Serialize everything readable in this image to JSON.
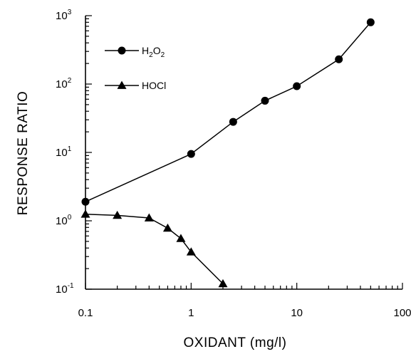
{
  "chart_data": {
    "type": "line",
    "xlabel": "OXIDANT (mg/l)",
    "ylabel": "RESPONSE RATIO",
    "x_scale": "log",
    "y_scale": "log",
    "xlim": [
      0.1,
      100
    ],
    "ylim": [
      0.1,
      1000
    ],
    "x_ticks": [
      {
        "value": 0.1,
        "label": "0.1"
      },
      {
        "value": 1,
        "label": "1"
      },
      {
        "value": 10,
        "label": "10"
      },
      {
        "value": 100,
        "label": "100"
      }
    ],
    "y_ticks": [
      {
        "value": 0.1,
        "base": "10",
        "exp": "-1"
      },
      {
        "value": 1,
        "base": "10",
        "exp": "0"
      },
      {
        "value": 10,
        "base": "10",
        "exp": "1"
      },
      {
        "value": 100,
        "base": "10",
        "exp": "2"
      },
      {
        "value": 1000,
        "base": "10",
        "exp": "3"
      }
    ],
    "grid": false,
    "legend_position": "top-left",
    "series": [
      {
        "name": "H2O2",
        "label_parts": [
          "H",
          "2",
          "O",
          "2"
        ],
        "marker": "circle",
        "x": [
          0.1,
          1,
          2.5,
          5,
          10,
          25,
          50
        ],
        "y": [
          1.9,
          9.5,
          28,
          57,
          93,
          230,
          800
        ]
      },
      {
        "name": "HOCl",
        "marker": "triangle",
        "x": [
          0.1,
          0.2,
          0.4,
          0.6,
          0.8,
          1,
          2
        ],
        "y": [
          1.25,
          1.2,
          1.1,
          0.78,
          0.55,
          0.35,
          0.12
        ]
      }
    ]
  }
}
